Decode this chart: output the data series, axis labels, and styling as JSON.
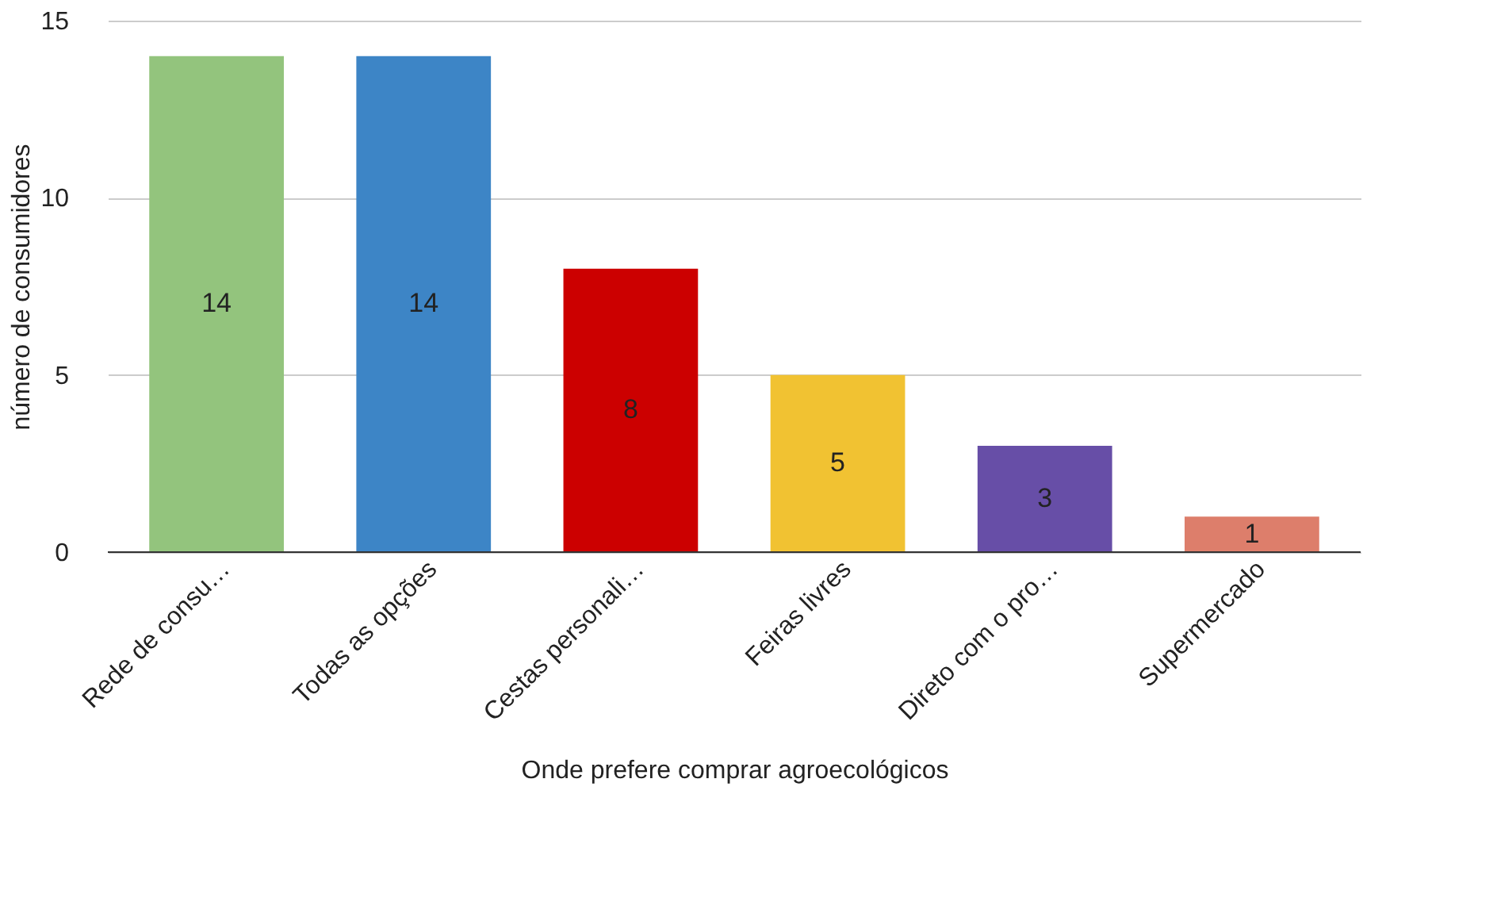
{
  "chart_data": {
    "type": "bar",
    "xlabel": "Onde prefere comprar agroecológicos",
    "ylabel": "número de consumidores",
    "categories": [
      "Rede de consu…",
      "Todas as opções",
      "Cestas personali…",
      "Feiras livres",
      "Direto com o pro…",
      "Supermercado"
    ],
    "values": [
      14,
      14,
      8,
      5,
      3,
      1
    ],
    "colors": [
      "#93c47d",
      "#3d85c6",
      "#cc0000",
      "#f1c232",
      "#674ea7",
      "#dd7e6b"
    ],
    "ylim": [
      0,
      15
    ],
    "yticks": [
      0,
      5,
      10,
      15
    ],
    "grid": "y",
    "data_labels": true
  }
}
